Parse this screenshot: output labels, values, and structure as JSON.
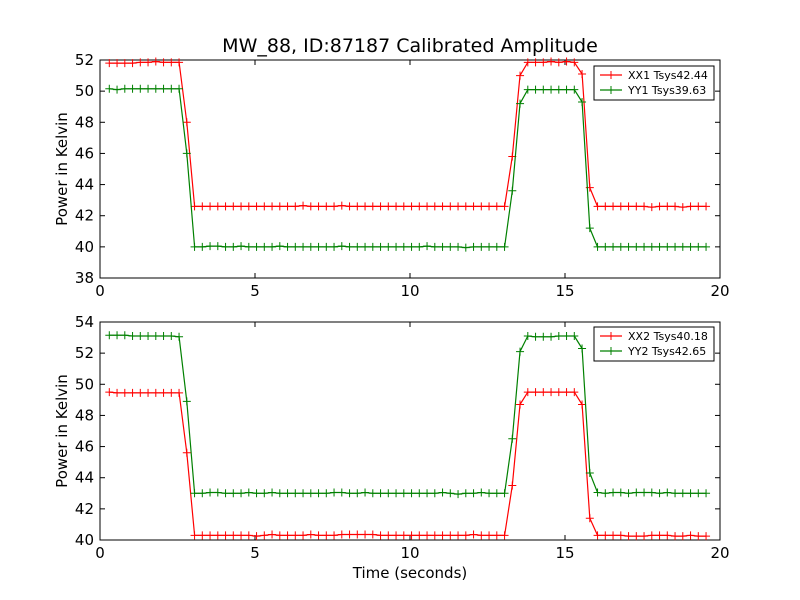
{
  "title": "MW_88, ID:87187 Calibrated Amplitude",
  "xlabel": "Time (seconds)",
  "colors": {
    "xx": "#ff0000",
    "yy": "#008000"
  },
  "chart_data": [
    {
      "type": "line",
      "ylabel": "Power in Kelvin",
      "xlim": [
        0,
        20
      ],
      "ylim": [
        38,
        52
      ],
      "xticks": [
        0,
        5,
        10,
        15,
        20
      ],
      "yticks": [
        38,
        40,
        42,
        44,
        46,
        48,
        50,
        52
      ],
      "legend": "top-right",
      "series": [
        {
          "name": "XX1 Tsys42.44",
          "color": "#ff0000",
          "x": [
            0.3,
            0.55,
            0.8,
            1.05,
            1.3,
            1.55,
            1.8,
            2.05,
            2.3,
            2.55,
            2.8,
            3.05,
            3.3,
            3.55,
            3.8,
            4.05,
            4.3,
            4.55,
            4.8,
            5.05,
            5.3,
            5.55,
            5.8,
            6.05,
            6.3,
            6.55,
            6.8,
            7.05,
            7.3,
            7.55,
            7.8,
            8.05,
            8.3,
            8.55,
            8.8,
            9.05,
            9.3,
            9.55,
            9.8,
            10.05,
            10.3,
            10.55,
            10.8,
            11.05,
            11.3,
            11.55,
            11.8,
            12.05,
            12.3,
            12.55,
            12.8,
            13.05,
            13.3,
            13.55,
            13.8,
            14.05,
            14.3,
            14.55,
            14.8,
            15.05,
            15.3,
            15.55,
            15.8,
            16.05,
            16.3,
            16.55,
            16.8,
            17.05,
            17.3,
            17.55,
            17.8,
            18.05,
            18.3,
            18.55,
            18.8,
            19.05,
            19.3,
            19.55
          ],
          "y": [
            51.8,
            51.8,
            51.8,
            51.8,
            51.85,
            51.85,
            51.9,
            51.85,
            51.85,
            51.85,
            48.0,
            42.6,
            42.6,
            42.6,
            42.6,
            42.6,
            42.6,
            42.6,
            42.6,
            42.6,
            42.6,
            42.6,
            42.6,
            42.6,
            42.6,
            42.65,
            42.6,
            42.6,
            42.6,
            42.6,
            42.65,
            42.6,
            42.6,
            42.6,
            42.6,
            42.6,
            42.6,
            42.6,
            42.6,
            42.6,
            42.6,
            42.6,
            42.6,
            42.6,
            42.6,
            42.6,
            42.6,
            42.6,
            42.6,
            42.6,
            42.6,
            42.6,
            45.8,
            51.0,
            51.85,
            51.85,
            51.85,
            51.9,
            51.85,
            51.9,
            51.85,
            51.1,
            43.8,
            42.6,
            42.6,
            42.6,
            42.6,
            42.6,
            42.6,
            42.6,
            42.55,
            42.6,
            42.6,
            42.6,
            42.55,
            42.6,
            42.6,
            42.6
          ]
        },
        {
          "name": "YY1 Tsys39.63",
          "color": "#008000",
          "x": [
            0.3,
            0.55,
            0.8,
            1.05,
            1.3,
            1.55,
            1.8,
            2.05,
            2.3,
            2.55,
            2.8,
            3.05,
            3.3,
            3.55,
            3.8,
            4.05,
            4.3,
            4.55,
            4.8,
            5.05,
            5.3,
            5.55,
            5.8,
            6.05,
            6.3,
            6.55,
            6.8,
            7.05,
            7.3,
            7.55,
            7.8,
            8.05,
            8.3,
            8.55,
            8.8,
            9.05,
            9.3,
            9.55,
            9.8,
            10.05,
            10.3,
            10.55,
            10.8,
            11.05,
            11.3,
            11.55,
            11.8,
            12.05,
            12.3,
            12.55,
            12.8,
            13.05,
            13.3,
            13.55,
            13.8,
            14.05,
            14.3,
            14.55,
            14.8,
            15.05,
            15.3,
            15.55,
            15.8,
            16.05,
            16.3,
            16.55,
            16.8,
            17.05,
            17.3,
            17.55,
            17.8,
            18.05,
            18.3,
            18.55,
            18.8,
            19.05,
            19.3,
            19.55
          ],
          "y": [
            50.15,
            50.1,
            50.15,
            50.15,
            50.15,
            50.15,
            50.15,
            50.15,
            50.15,
            50.15,
            46.0,
            40.0,
            40.0,
            40.05,
            40.05,
            40.0,
            40.0,
            40.05,
            40.0,
            40.0,
            40.0,
            40.0,
            40.05,
            40.0,
            40.0,
            40.0,
            40.0,
            40.0,
            40.0,
            40.0,
            40.05,
            40.0,
            40.0,
            40.0,
            40.0,
            40.0,
            40.0,
            40.0,
            40.0,
            40.0,
            40.0,
            40.05,
            40.0,
            40.0,
            40.0,
            40.0,
            39.95,
            40.0,
            40.0,
            40.0,
            40.0,
            40.0,
            43.6,
            49.2,
            50.1,
            50.1,
            50.1,
            50.1,
            50.1,
            50.1,
            50.1,
            49.3,
            41.2,
            40.0,
            40.0,
            40.0,
            40.0,
            40.0,
            40.0,
            40.0,
            40.0,
            40.0,
            40.0,
            40.0,
            40.0,
            40.0,
            40.0,
            40.0
          ]
        }
      ]
    },
    {
      "type": "line",
      "ylabel": "Power in Kelvin",
      "xlabel": "Time (seconds)",
      "xlim": [
        0,
        20
      ],
      "ylim": [
        40,
        54
      ],
      "xticks": [
        0,
        5,
        10,
        15,
        20
      ],
      "yticks": [
        40,
        42,
        44,
        46,
        48,
        50,
        52,
        54
      ],
      "legend": "top-right",
      "series": [
        {
          "name": "XX2 Tsys40.18",
          "color": "#ff0000",
          "x": [
            0.3,
            0.55,
            0.8,
            1.05,
            1.3,
            1.55,
            1.8,
            2.05,
            2.3,
            2.55,
            2.8,
            3.05,
            3.3,
            3.55,
            3.8,
            4.05,
            4.3,
            4.55,
            4.8,
            5.05,
            5.3,
            5.55,
            5.8,
            6.05,
            6.3,
            6.55,
            6.8,
            7.05,
            7.3,
            7.55,
            7.8,
            8.05,
            8.3,
            8.55,
            8.8,
            9.05,
            9.3,
            9.55,
            9.8,
            10.05,
            10.3,
            10.55,
            10.8,
            11.05,
            11.3,
            11.55,
            11.8,
            12.05,
            12.3,
            12.55,
            12.8,
            13.05,
            13.3,
            13.55,
            13.8,
            14.05,
            14.3,
            14.55,
            14.8,
            15.05,
            15.3,
            15.55,
            15.8,
            16.05,
            16.3,
            16.55,
            16.8,
            17.05,
            17.3,
            17.55,
            17.8,
            18.05,
            18.3,
            18.55,
            18.8,
            19.05,
            19.3,
            19.55
          ],
          "y": [
            49.5,
            49.45,
            49.45,
            49.45,
            49.45,
            49.45,
            49.45,
            49.45,
            49.45,
            49.45,
            45.6,
            40.3,
            40.3,
            40.3,
            40.3,
            40.3,
            40.3,
            40.3,
            40.3,
            40.25,
            40.3,
            40.35,
            40.3,
            40.3,
            40.3,
            40.3,
            40.35,
            40.3,
            40.3,
            40.3,
            40.35,
            40.35,
            40.35,
            40.35,
            40.35,
            40.3,
            40.3,
            40.3,
            40.3,
            40.3,
            40.3,
            40.3,
            40.3,
            40.3,
            40.3,
            40.3,
            40.3,
            40.35,
            40.3,
            40.3,
            40.3,
            40.3,
            43.5,
            48.7,
            49.5,
            49.5,
            49.5,
            49.5,
            49.5,
            49.5,
            49.5,
            48.7,
            41.4,
            40.3,
            40.3,
            40.3,
            40.3,
            40.25,
            40.25,
            40.25,
            40.3,
            40.3,
            40.3,
            40.25,
            40.25,
            40.3,
            40.25,
            40.25
          ]
        },
        {
          "name": "YY2 Tsys42.65",
          "color": "#008000",
          "x": [
            0.3,
            0.55,
            0.8,
            1.05,
            1.3,
            1.55,
            1.8,
            2.05,
            2.3,
            2.55,
            2.8,
            3.05,
            3.3,
            3.55,
            3.8,
            4.05,
            4.3,
            4.55,
            4.8,
            5.05,
            5.3,
            5.55,
            5.8,
            6.05,
            6.3,
            6.55,
            6.8,
            7.05,
            7.3,
            7.55,
            7.8,
            8.05,
            8.3,
            8.55,
            8.8,
            9.05,
            9.3,
            9.55,
            9.8,
            10.05,
            10.3,
            10.55,
            10.8,
            11.05,
            11.3,
            11.55,
            11.8,
            12.05,
            12.3,
            12.55,
            12.8,
            13.05,
            13.3,
            13.55,
            13.8,
            14.05,
            14.3,
            14.55,
            14.8,
            15.05,
            15.3,
            15.55,
            15.8,
            16.05,
            16.3,
            16.55,
            16.8,
            17.05,
            17.3,
            17.55,
            17.8,
            18.05,
            18.3,
            18.55,
            18.8,
            19.05,
            19.3,
            19.55
          ],
          "y": [
            53.15,
            53.15,
            53.15,
            53.1,
            53.1,
            53.1,
            53.1,
            53.1,
            53.1,
            53.05,
            48.9,
            43.0,
            43.0,
            43.05,
            43.05,
            43.0,
            43.0,
            43.0,
            43.05,
            43.0,
            43.0,
            43.05,
            43.0,
            43.0,
            43.0,
            43.0,
            43.0,
            43.0,
            43.0,
            43.05,
            43.05,
            43.0,
            43.0,
            43.05,
            43.0,
            43.0,
            43.0,
            43.0,
            43.0,
            43.0,
            43.0,
            43.0,
            43.0,
            43.05,
            43.0,
            42.95,
            43.0,
            43.0,
            43.05,
            43.0,
            43.0,
            43.0,
            46.5,
            52.1,
            53.1,
            53.05,
            53.05,
            53.05,
            53.1,
            53.1,
            53.1,
            52.3,
            44.3,
            43.05,
            43.0,
            43.05,
            43.05,
            43.0,
            43.05,
            43.05,
            43.05,
            43.0,
            43.05,
            43.0,
            43.0,
            43.0,
            43.0,
            43.0
          ]
        }
      ]
    }
  ]
}
